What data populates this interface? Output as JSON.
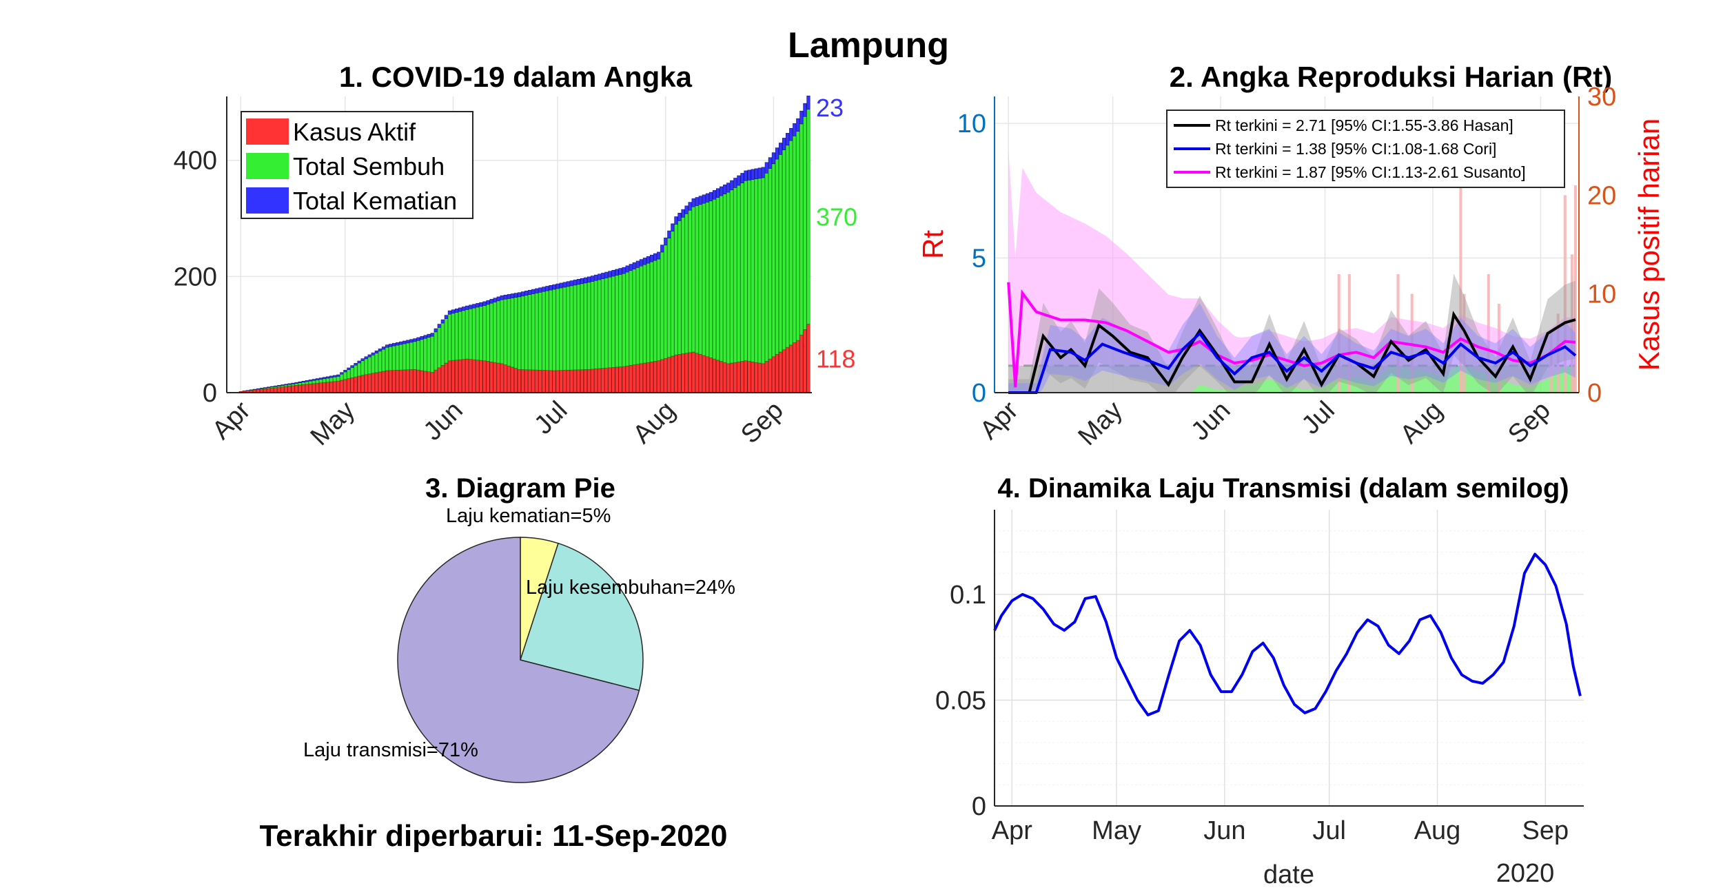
{
  "title": "Lampung",
  "footer": "Terakhir diperbarui: 11-Sep-2020",
  "colors": {
    "aktif": "#ff3333",
    "sembuh": "#33ee33",
    "kematian": "#3333ff",
    "hasan": "#000000",
    "cori": "#0000ee",
    "susanto": "#ff00ff",
    "hasanBand": "#999999",
    "coriBand": "#8888ff",
    "susantoBand": "#ff99ff",
    "casesBar": "#f8b4b4",
    "threshold": "#22aa22",
    "thresholdFill": "#66ee66",
    "pieKematian": "#ffff99",
    "pieSembuh": "#a6e6e0",
    "pieTransmisi": "#b0a8dc",
    "leftAxis": "#0072bd",
    "rightAxis": "#d95319",
    "rtLabel": "#ff0000"
  },
  "chart_data": [
    {
      "id": "angka",
      "type": "bar",
      "title": "1. COVID-19 dalam Angka",
      "month_ticks": [
        "Apr",
        "May",
        "Jun",
        "Jul",
        "Aug",
        "Sep"
      ],
      "y_ticks": [
        "0",
        "200",
        "400"
      ],
      "ylim": [
        0,
        510
      ],
      "legend_position": "top-left",
      "series": [
        {
          "name": "Kasus Aktif",
          "end_label": "118",
          "x_days": [
            0,
            15,
            28,
            35,
            42,
            50,
            55,
            60,
            65,
            70,
            75,
            80,
            90,
            100,
            110,
            115,
            120,
            125,
            130,
            135,
            140,
            145,
            150,
            155,
            160,
            163
          ],
          "values": [
            2,
            12,
            20,
            30,
            38,
            40,
            35,
            55,
            58,
            55,
            50,
            40,
            38,
            40,
            45,
            50,
            55,
            65,
            70,
            60,
            50,
            55,
            50,
            70,
            90,
            118
          ]
        },
        {
          "name": "Total Sembuh",
          "end_label": "370",
          "x_days": [
            0,
            15,
            28,
            35,
            42,
            50,
            55,
            60,
            65,
            70,
            75,
            80,
            90,
            100,
            110,
            115,
            120,
            125,
            130,
            135,
            140,
            145,
            150,
            155,
            160,
            163
          ],
          "values": [
            0,
            3,
            8,
            25,
            40,
            48,
            62,
            80,
            85,
            95,
            110,
            125,
            140,
            150,
            160,
            168,
            175,
            225,
            250,
            270,
            295,
            310,
            320,
            340,
            360,
            370
          ]
        },
        {
          "name": "Total Kematian",
          "end_label": "23",
          "x_days": [
            0,
            30,
            60,
            90,
            120,
            150,
            163
          ],
          "values": [
            0,
            3,
            6,
            8,
            12,
            18,
            23
          ]
        }
      ]
    },
    {
      "id": "rt",
      "type": "line",
      "title": "2. Angka Reproduksi Harian (Rt)",
      "ylabel": "Rt",
      "ylabel_right": "Kasus positif harian",
      "month_ticks": [
        "Apr",
        "May",
        "Jun",
        "Jul",
        "Aug",
        "Sep"
      ],
      "y_ticks": [
        "0",
        "5",
        "10"
      ],
      "y_ticks_right": [
        "0",
        "10",
        "20",
        "30"
      ],
      "ylim": [
        0,
        11
      ],
      "ylim_right": [
        0,
        30
      ],
      "threshold": 1,
      "series": [
        {
          "name": "Rt terkini = 2.71 [95% CI:1.55-3.86 Hasan]",
          "x_days": [
            0,
            6,
            10,
            15,
            18,
            22,
            26,
            30,
            35,
            40,
            46,
            50,
            55,
            60,
            65,
            70,
            75,
            80,
            85,
            90,
            95,
            100,
            105,
            110,
            115,
            120,
            125,
            128,
            131,
            135,
            140,
            145,
            150,
            155,
            160,
            163
          ],
          "values": [
            0,
            0,
            2.1,
            1.3,
            1.6,
            1.0,
            2.5,
            2.1,
            1.5,
            1.3,
            0.3,
            1.3,
            2.3,
            1.4,
            0.4,
            0.4,
            1.8,
            0.5,
            1.6,
            0.3,
            1.4,
            1.1,
            0.6,
            1.9,
            1.2,
            1.6,
            0.7,
            2.9,
            2.3,
            1.3,
            0.6,
            1.7,
            0.5,
            2.2,
            2.6,
            2.71
          ]
        },
        {
          "name": "Rt terkini = 1.38 [95% CI:1.08-1.68 Cori]",
          "x_days": [
            0,
            8,
            12,
            18,
            22,
            27,
            33,
            40,
            46,
            50,
            55,
            60,
            65,
            70,
            75,
            80,
            85,
            90,
            95,
            100,
            105,
            110,
            115,
            120,
            125,
            130,
            135,
            140,
            145,
            150,
            155,
            160,
            163
          ],
          "values": [
            0,
            0,
            1.6,
            1.5,
            1.2,
            1.8,
            1.5,
            1.2,
            0.9,
            1.6,
            2.2,
            1.3,
            0.7,
            1.3,
            1.5,
            0.8,
            1.3,
            0.8,
            1.4,
            1.1,
            0.9,
            1.5,
            1.3,
            1.5,
            1.1,
            1.8,
            1.3,
            1.1,
            1.5,
            1.0,
            1.4,
            1.7,
            1.38
          ]
        },
        {
          "name": "Rt terkini = 1.87 [95% CI:1.13-2.61 Susanto]",
          "x_days": [
            0,
            2,
            4,
            8,
            15,
            22,
            28,
            34,
            40,
            46,
            50,
            55,
            60,
            65,
            70,
            75,
            80,
            85,
            90,
            95,
            100,
            105,
            110,
            115,
            120,
            125,
            130,
            135,
            140,
            145,
            150,
            155,
            160,
            163
          ],
          "values": [
            4.1,
            0.2,
            3.7,
            3.0,
            2.7,
            2.7,
            2.6,
            2.3,
            1.9,
            1.5,
            1.6,
            1.9,
            1.4,
            1.1,
            1.2,
            1.4,
            1.2,
            1.0,
            1.1,
            1.4,
            1.5,
            1.3,
            1.9,
            1.8,
            1.7,
            1.5,
            2.0,
            1.7,
            1.5,
            1.2,
            1.1,
            1.4,
            1.9,
            1.87
          ]
        }
      ],
      "daily_cases": {
        "x_days": [
          95,
          98,
          112,
          116,
          130,
          131,
          138,
          141,
          156,
          158,
          160,
          162,
          163
        ],
        "values": [
          12,
          12,
          12,
          10,
          22,
          10,
          12,
          9,
          6,
          8,
          20,
          14,
          21
        ]
      }
    },
    {
      "id": "pie",
      "type": "pie",
      "title": "3. Diagram Pie",
      "slices": [
        {
          "label": "Laju kematian=5%",
          "value": 5
        },
        {
          "label": "Laju kesembuhan=24%",
          "value": 24
        },
        {
          "label": "Laju transmisi=71%",
          "value": 71
        }
      ]
    },
    {
      "id": "transmisi",
      "type": "line",
      "title": "4. Dinamika Laju Transmisi (dalam semilog)",
      "xlabel": "date",
      "year_label": "2020",
      "month_ticks": [
        "Apr",
        "May",
        "Jun",
        "Jul",
        "Aug",
        "Sep"
      ],
      "y_ticks": [
        "0",
        "0.05",
        "0.1"
      ],
      "ylim": [
        0,
        0.14
      ],
      "series": [
        {
          "x_days": [
            -5,
            -3,
            0,
            3,
            6,
            9,
            12,
            15,
            18,
            21,
            24,
            27,
            30,
            33,
            36,
            39,
            42,
            45,
            48,
            51,
            54,
            57,
            60,
            63,
            66,
            69,
            72,
            75,
            78,
            81,
            84,
            87,
            90,
            93,
            96,
            99,
            102,
            105,
            108,
            111,
            114,
            117,
            120,
            123,
            126,
            129,
            132,
            135,
            138,
            141,
            144,
            147,
            150,
            153,
            156,
            159,
            161,
            163
          ],
          "values": [
            0.083,
            0.09,
            0.097,
            0.1,
            0.098,
            0.093,
            0.086,
            0.083,
            0.087,
            0.098,
            0.099,
            0.087,
            0.07,
            0.06,
            0.05,
            0.043,
            0.045,
            0.062,
            0.078,
            0.083,
            0.076,
            0.062,
            0.054,
            0.054,
            0.062,
            0.073,
            0.077,
            0.07,
            0.057,
            0.048,
            0.044,
            0.046,
            0.054,
            0.064,
            0.072,
            0.082,
            0.088,
            0.085,
            0.076,
            0.072,
            0.078,
            0.088,
            0.09,
            0.082,
            0.07,
            0.062,
            0.059,
            0.058,
            0.062,
            0.068,
            0.085,
            0.11,
            0.119,
            0.114,
            0.104,
            0.086,
            0.066,
            0.052
          ]
        }
      ]
    }
  ]
}
